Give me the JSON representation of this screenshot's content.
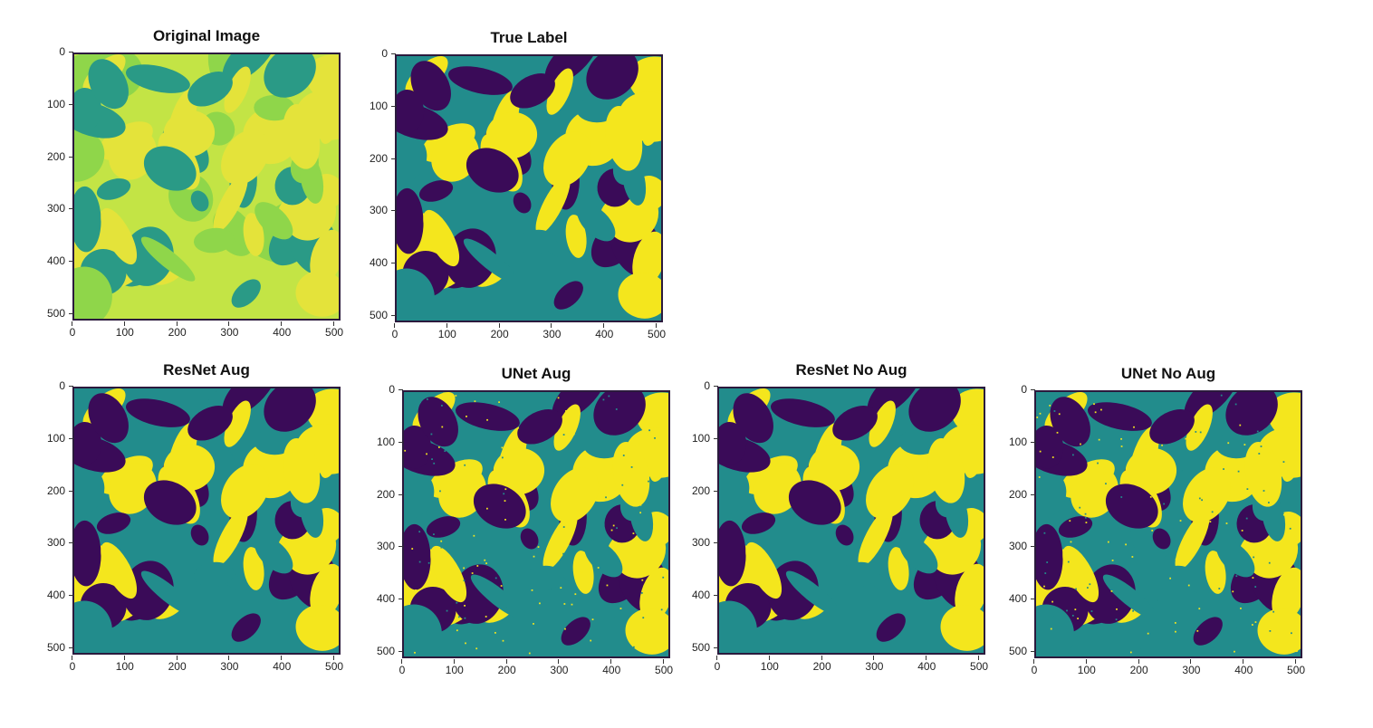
{
  "panels": [
    {
      "title": "Original Image",
      "palette": "original"
    },
    {
      "title": "True Label",
      "palette": "label"
    },
    {
      "title": "ResNet Aug",
      "palette": "label"
    },
    {
      "title": "UNet Aug",
      "palette": "label_noisy"
    },
    {
      "title": "ResNet No Aug",
      "palette": "label"
    },
    {
      "title": "UNet No Aug",
      "palette": "label_noisy"
    }
  ],
  "y_ticks": [
    "0",
    "100",
    "200",
    "300",
    "400",
    "500"
  ],
  "x_ticks": [
    "0",
    "100",
    "200",
    "300",
    "400",
    "500"
  ],
  "colors": {
    "original_bg": "#c3e445",
    "original_mid": "#8fd64a",
    "original_dark": "#2a9a86",
    "original_light": "#e4e33a",
    "label_dark": "#3a0b58",
    "label_mid": "#228c8c",
    "label_yellow": "#f4e61d"
  }
}
